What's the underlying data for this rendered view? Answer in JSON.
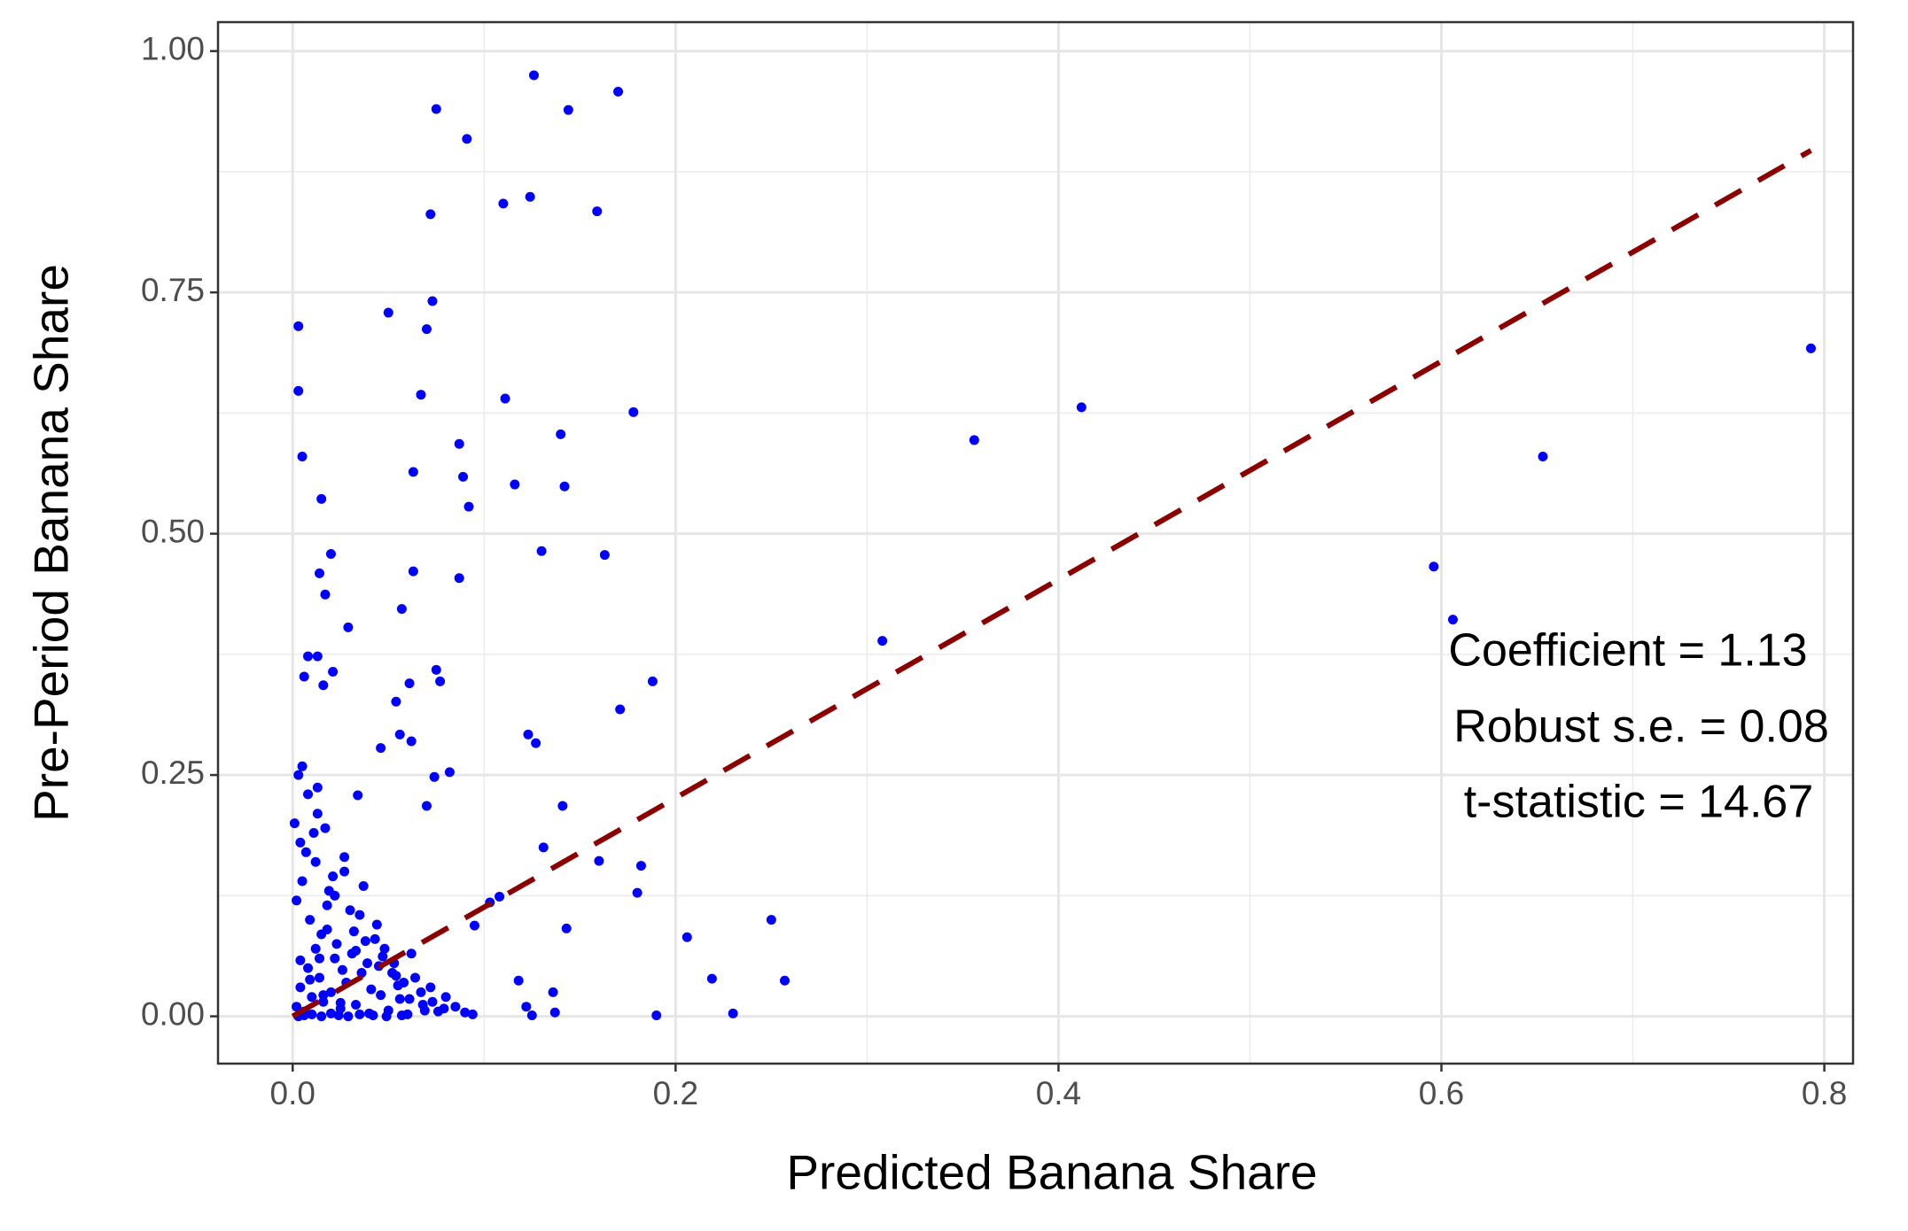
{
  "chart_data": {
    "type": "scatter",
    "x_label": "Predicted Banana Share",
    "y_label": "Pre-Period Banana Share",
    "annotations": [
      "Coefficient = 1.13",
      "Robust s.e. = 0.08",
      "t-statistic = 14.67"
    ],
    "color": "#0000ff",
    "x": [
      0.126,
      0.17,
      0.075,
      0.144,
      0.091,
      0.124,
      0.11,
      0.159,
      0.072,
      0.073,
      0.05,
      0.003,
      0.07,
      0.003,
      0.067,
      0.111,
      0.412,
      0.178,
      0.793,
      0.356,
      0.14,
      0.087,
      0.005,
      0.653,
      0.063,
      0.089,
      0.116,
      0.142,
      0.092,
      0.015,
      0.13,
      0.163,
      0.02,
      0.596,
      0.063,
      0.014,
      0.087,
      0.017,
      0.606,
      0.057,
      0.029,
      0.308,
      0.075,
      0.021,
      0.008,
      0.013,
      0.006,
      0.016,
      0.188,
      0.061,
      0.077,
      0.054,
      0.171,
      0.056,
      0.062,
      0.123,
      0.127,
      0.046,
      0.082,
      0.074,
      0.005,
      0.003,
      0.013,
      0.034,
      0.141,
      0.07,
      0.16,
      0.182,
      0.18,
      0.131,
      0.25,
      0.206,
      0.219,
      0.257,
      0.23,
      0.19,
      0.143,
      0.108,
      0.103,
      0.095,
      0.118,
      0.136,
      0.122,
      0.125,
      0.137,
      0.002,
      0.004,
      0.006,
      0.008,
      0.01,
      0.012,
      0.014,
      0.016,
      0.018,
      0.02,
      0.022,
      0.025,
      0.028,
      0.03,
      0.033,
      0.036,
      0.04,
      0.043,
      0.046,
      0.05,
      0.053,
      0.056,
      0.06,
      0.064,
      0.068,
      0.072,
      0.076,
      0.08,
      0.085,
      0.09,
      0.094,
      0.002,
      0.005,
      0.009,
      0.012,
      0.015,
      0.019,
      0.023,
      0.027,
      0.031,
      0.035,
      0.039,
      0.044,
      0.048,
      0.052,
      0.058,
      0.062,
      0.067,
      0.073,
      0.079,
      0.001,
      0.004,
      0.007,
      0.011,
      0.014,
      0.018,
      0.021,
      0.026,
      0.032,
      0.037,
      0.041,
      0.047,
      0.054,
      0.061,
      0.069,
      0.003,
      0.006,
      0.01,
      0.015,
      0.02,
      0.024,
      0.029,
      0.035,
      0.042,
      0.049,
      0.057,
      0.008,
      0.013,
      0.017,
      0.022,
      0.027,
      0.038,
      0.045,
      0.055,
      0.004,
      0.009,
      0.016,
      0.025,
      0.033
    ],
    "y": [
      0.975,
      0.958,
      0.94,
      0.939,
      0.909,
      0.849,
      0.842,
      0.834,
      0.831,
      0.741,
      0.729,
      0.715,
      0.712,
      0.648,
      0.644,
      0.64,
      0.631,
      0.626,
      0.692,
      0.597,
      0.603,
      0.593,
      0.58,
      0.58,
      0.564,
      0.559,
      0.551,
      0.549,
      0.528,
      0.536,
      0.482,
      0.478,
      0.479,
      0.466,
      0.461,
      0.459,
      0.454,
      0.437,
      0.411,
      0.422,
      0.403,
      0.389,
      0.359,
      0.357,
      0.373,
      0.373,
      0.352,
      0.343,
      0.347,
      0.345,
      0.347,
      0.326,
      0.318,
      0.292,
      0.285,
      0.292,
      0.283,
      0.278,
      0.253,
      0.248,
      0.259,
      0.25,
      0.237,
      0.229,
      0.218,
      0.218,
      0.161,
      0.156,
      0.128,
      0.175,
      0.1,
      0.082,
      0.039,
      0.037,
      0.003,
      0.001,
      0.091,
      0.124,
      0.118,
      0.094,
      0.037,
      0.025,
      0.01,
      0.001,
      0.004,
      0.01,
      0.03,
      0.005,
      0.05,
      0.02,
      0.07,
      0.04,
      0.015,
      0.09,
      0.025,
      0.06,
      0.008,
      0.035,
      0.11,
      0.012,
      0.045,
      0.003,
      0.08,
      0.022,
      0.006,
      0.055,
      0.018,
      0.002,
      0.04,
      0.012,
      0.03,
      0.005,
      0.02,
      0.01,
      0.004,
      0.002,
      0.12,
      0.14,
      0.1,
      0.16,
      0.085,
      0.13,
      0.075,
      0.15,
      0.065,
      0.105,
      0.055,
      0.095,
      0.07,
      0.045,
      0.035,
      0.065,
      0.025,
      0.015,
      0.008,
      0.2,
      0.18,
      0.17,
      0.19,
      0.06,
      0.115,
      0.145,
      0.048,
      0.088,
      0.135,
      0.028,
      0.062,
      0.042,
      0.018,
      0.006,
      0.0,
      0.001,
      0.002,
      0.0,
      0.003,
      0.001,
      0.0,
      0.002,
      0.001,
      0.0,
      0.001,
      0.23,
      0.21,
      0.195,
      0.125,
      0.165,
      0.078,
      0.052,
      0.032,
      0.058,
      0.038,
      0.022,
      0.014,
      0.068
    ],
    "fit_line": {
      "color": "#8b0000",
      "x": [
        0,
        0.793
      ],
      "y": [
        0,
        0.897
      ]
    },
    "xlim": [
      -0.039,
      0.815
    ],
    "ylim": [
      -0.049,
      1.03
    ],
    "xticks": [
      {
        "value": 0,
        "label": "0.0"
      },
      0.2,
      0.4,
      0.6,
      0.8
    ],
    "yticks": [
      {
        "value": 0,
        "label": "0.00"
      },
      {
        "value": 0.25,
        "label": "0.25"
      },
      {
        "value": 0.5,
        "label": "0.50"
      },
      {
        "value": 0.75,
        "label": "0.75"
      },
      {
        "value": 1,
        "label": "1.00"
      }
    ],
    "x_minor_ticks": [
      0.1,
      0.3,
      0.5,
      0.7
    ],
    "y_minor_ticks": [
      0.125,
      0.375,
      0.625,
      0.875
    ],
    "grid": true
  }
}
